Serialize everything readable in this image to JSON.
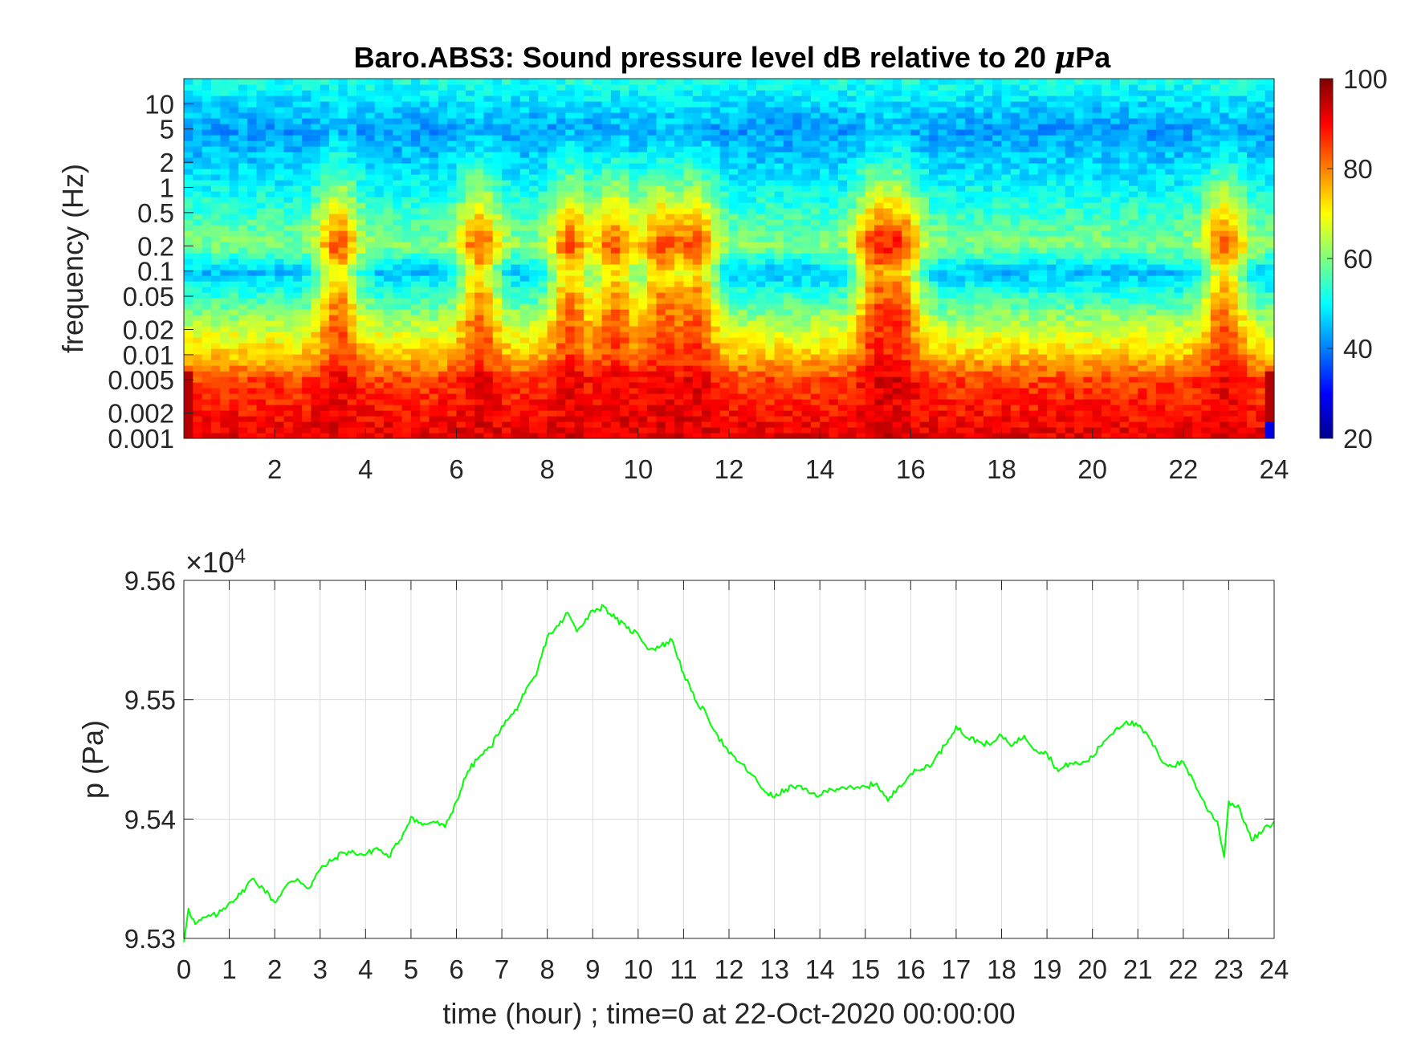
{
  "chart_data": [
    {
      "type": "heatmap",
      "title": "Baro.ABS3: Sound pressure level dB relative to 20 μPa",
      "title_prefix": "Baro.ABS3: Sound pressure level dB relative to 20 ",
      "title_mu": "μ",
      "title_unit": "Pa",
      "ylabel": "frequency (Hz)",
      "xlabel": "",
      "xlim": [
        0,
        24
      ],
      "x_ticks": [
        2,
        4,
        6,
        8,
        10,
        12,
        14,
        16,
        18,
        20,
        22,
        24
      ],
      "y_scale": "log",
      "ylim": [
        0.001,
        20
      ],
      "y_ticks": [
        0.001,
        0.002,
        0.005,
        0.01,
        0.02,
        0.05,
        0.1,
        0.2,
        0.5,
        1,
        2,
        5,
        10
      ],
      "y_tick_labels": [
        "0.001",
        "0.002",
        "0.005",
        "0.01",
        "0.02",
        "0.05",
        "0.1",
        "0.2",
        "0.5",
        "1",
        "2",
        "5",
        "10"
      ],
      "colorbar": {
        "colormap": "jet",
        "clim": [
          20,
          100
        ],
        "ticks": [
          20,
          40,
          60,
          80,
          100
        ]
      },
      "approx_level_profile": {
        "freq_bands_hz": [
          0.001,
          0.005,
          0.01,
          0.02,
          0.1,
          0.2,
          1,
          5,
          20
        ],
        "level_db": [
          92,
          85,
          74,
          66,
          45,
          60,
          50,
          42,
          52
        ]
      },
      "event_hours": [
        3.4,
        6.5,
        8.5,
        9.5,
        10.5,
        11.3,
        15.2,
        15.8,
        22.9
      ]
    },
    {
      "type": "line",
      "title": "",
      "xlabel": "time (hour) ; time=0 at 22-Oct-2020 00:00:00",
      "ylabel": "p (Pa)",
      "y_exponent_label": "×10",
      "y_exponent_power": "4",
      "xlim": [
        0,
        24
      ],
      "ylim": [
        95300,
        95600
      ],
      "x_ticks": [
        0,
        1,
        2,
        3,
        4,
        5,
        6,
        7,
        8,
        9,
        10,
        11,
        12,
        13,
        14,
        15,
        16,
        17,
        18,
        19,
        20,
        21,
        22,
        23,
        24
      ],
      "y_ticks": [
        95300,
        95400,
        95500,
        95600
      ],
      "y_tick_labels": [
        "9.53",
        "9.54",
        "9.55",
        "9.56"
      ],
      "grid": true,
      "series_color": "#00ff00",
      "x": [
        0,
        0.1,
        0.25,
        0.5,
        0.75,
        1,
        1.25,
        1.5,
        1.75,
        2,
        2.25,
        2.5,
        2.75,
        3,
        3.25,
        3.5,
        3.75,
        4,
        4.25,
        4.5,
        4.75,
        5,
        5.25,
        5.5,
        5.75,
        6,
        6.25,
        6.5,
        6.75,
        7,
        7.25,
        7.5,
        7.75,
        8,
        8.25,
        8.45,
        8.65,
        8.85,
        9,
        9.25,
        9.5,
        9.75,
        10,
        10.25,
        10.5,
        10.75,
        11,
        11.25,
        11.5,
        11.75,
        12,
        12.25,
        12.5,
        12.75,
        13,
        13.25,
        13.5,
        13.75,
        14,
        14.25,
        14.5,
        14.75,
        15,
        15.25,
        15.5,
        15.75,
        16,
        16.25,
        16.5,
        16.75,
        17,
        17.25,
        17.5,
        17.75,
        18,
        18.25,
        18.5,
        18.75,
        19,
        19.25,
        19.5,
        19.75,
        20,
        20.25,
        20.5,
        20.75,
        21,
        21.25,
        21.5,
        21.75,
        22,
        22.25,
        22.5,
        22.75,
        22.9,
        23,
        23.25,
        23.5,
        23.75,
        24
      ],
      "y": [
        95297,
        95325,
        95312,
        95318,
        95320,
        95330,
        95337,
        95350,
        95342,
        95330,
        95344,
        95350,
        95342,
        95358,
        95365,
        95372,
        95372,
        95370,
        95376,
        95368,
        95382,
        95402,
        95395,
        95398,
        95393,
        95415,
        95440,
        95452,
        95460,
        95478,
        95488,
        95505,
        95520,
        95553,
        95562,
        95573,
        95557,
        95568,
        95575,
        95578,
        95568,
        95560,
        95555,
        95542,
        95545,
        95550,
        95522,
        95500,
        95488,
        95470,
        95455,
        95447,
        95437,
        95425,
        95418,
        95425,
        95428,
        95422,
        95420,
        95425,
        95427,
        95425,
        95427,
        95430,
        95415,
        95428,
        95438,
        95442,
        95448,
        95462,
        95478,
        95468,
        95465,
        95462,
        95470,
        95462,
        95470,
        95458,
        95455,
        95440,
        95447,
        95446,
        95452,
        95465,
        95475,
        95482,
        95478,
        95468,
        95450,
        95444,
        95448,
        95430,
        95410,
        95398,
        95368,
        95415,
        95408,
        95382,
        95390,
        95398
      ]
    }
  ]
}
